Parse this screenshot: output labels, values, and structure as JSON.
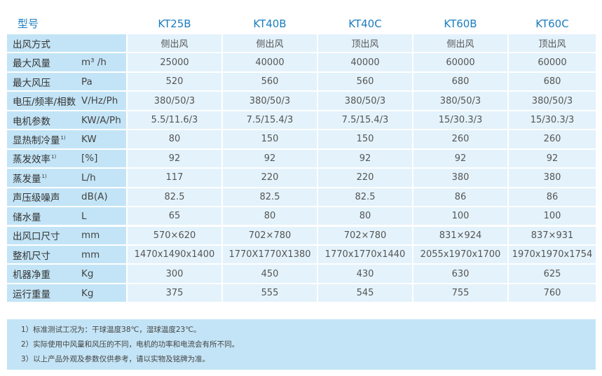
{
  "table": {
    "header": {
      "title": "型号",
      "models": [
        "KT25B",
        "KT40B",
        "KT40C",
        "KT60B",
        "KT60C"
      ]
    },
    "rows": [
      {
        "name": "出风方式",
        "unit": null,
        "values": [
          "侧出风",
          "侧出风",
          "顶出风",
          "侧出风",
          "顶出风"
        ]
      },
      {
        "name": "最大风量",
        "unit": "m³ /h",
        "values": [
          "25000",
          "40000",
          "40000",
          "60000",
          "60000"
        ]
      },
      {
        "name": "最大风压",
        "unit": "Pa",
        "values": [
          "520",
          "560",
          "560",
          "680",
          "680"
        ]
      },
      {
        "name": "电压/频率/相数",
        "unit": "V/Hz/Ph",
        "values": [
          "380/50/3",
          "380/50/3",
          "380/50/3",
          "380/50/3",
          "380/50/3"
        ]
      },
      {
        "name": "电机参数",
        "unit": "KW/A/Ph",
        "values": [
          "5.5/11.6/3",
          "7.5/15.4/3",
          "7.5/15.4/3",
          "15/30.3/3",
          "15/30.3/3"
        ]
      },
      {
        "name": "显热制冷量",
        "note": "1)",
        "unit": "KW",
        "values": [
          "80",
          "150",
          "150",
          "260",
          "260"
        ]
      },
      {
        "name": "蒸发效率",
        "note": "1)",
        "unit": "[%]",
        "values": [
          "92",
          "92",
          "92",
          "92",
          "92"
        ]
      },
      {
        "name": "蒸发量",
        "note": "1)",
        "unit": "L/h",
        "values": [
          "117",
          "220",
          "220",
          "380",
          "380"
        ]
      },
      {
        "name": "声压级噪声",
        "unit": "dB(A)",
        "values": [
          "82.5",
          "82.5",
          "82.5",
          "86",
          "86"
        ]
      },
      {
        "name": "储水量",
        "unit": "L",
        "values": [
          "65",
          "80",
          "80",
          "100",
          "100"
        ]
      },
      {
        "name": "出风口尺寸",
        "unit": "mm",
        "values": [
          "570×620",
          "702×780",
          "702×780",
          "831×924",
          "837×931"
        ]
      },
      {
        "name": "整机尺寸",
        "unit": "mm",
        "values": [
          "1470x1490x1400",
          "1770X1770X1380",
          "1770x1770x1440",
          "2055x1970x1700",
          "1970x1970x1754"
        ]
      },
      {
        "name": "机器净重",
        "unit": "Kg",
        "values": [
          "300",
          "450",
          "430",
          "630",
          "625"
        ]
      },
      {
        "name": "运行重量",
        "unit": "Kg",
        "values": [
          "375",
          "555",
          "545",
          "755",
          "760"
        ]
      }
    ],
    "notes": [
      "1）标准测试工况为：干球温度38℃，湿球温度23℃。",
      "2）实际使用中风量和风压的不同，电机的功率和电流会有所不同。",
      "3）以上产品外观及参数仅供参考，请以实物及铭牌为准。"
    ]
  }
}
